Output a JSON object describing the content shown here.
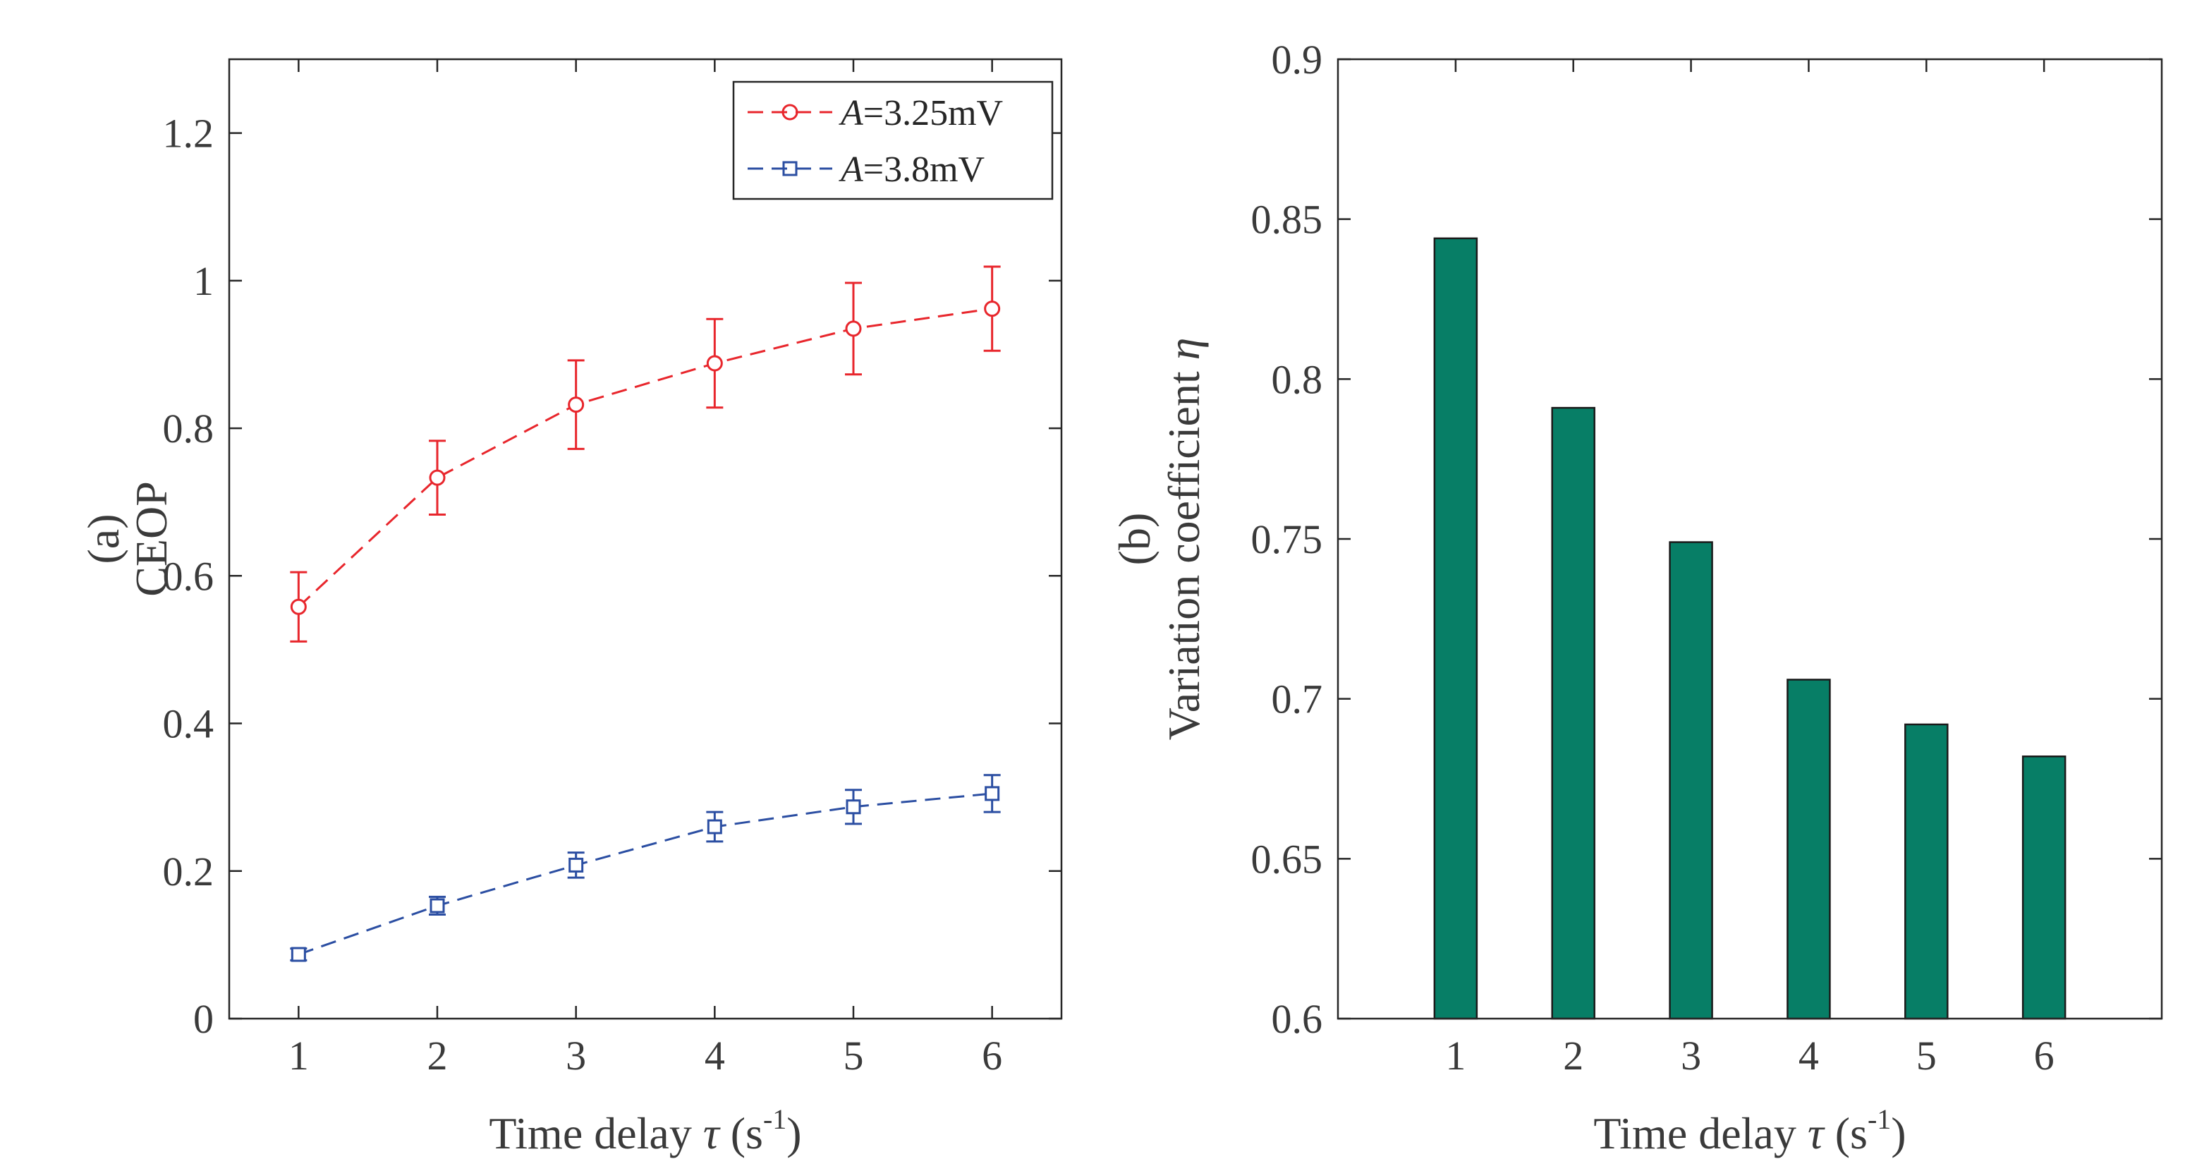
{
  "chart_data": [
    {
      "type": "line",
      "panel_label": "(a)",
      "ylabel": "CEOP",
      "xlabel_prefix": "Time delay ",
      "xlabel_symbol": "τ",
      "xlabel_unit": " (s",
      "xlabel_exp": "-1",
      "xlabel_close": ")",
      "x": [
        1,
        2,
        3,
        4,
        5,
        6
      ],
      "xlim": [
        0.5,
        6.5
      ],
      "ylim": [
        0,
        1.3
      ],
      "xticks": [
        "1",
        "2",
        "3",
        "4",
        "5",
        "6"
      ],
      "yticks": [
        "0",
        "0.2",
        "0.4",
        "0.6",
        "0.8",
        "1",
        "1.2"
      ],
      "ytick_values": [
        0,
        0.2,
        0.4,
        0.6,
        0.8,
        1.0,
        1.2
      ],
      "legend_position": "top-right",
      "series": [
        {
          "legend_var": "A",
          "legend_value": "=3.25mV",
          "color": "#e8262c",
          "marker": "circle",
          "values": [
            0.558,
            0.733,
            0.832,
            0.888,
            0.935,
            0.962
          ],
          "errors": [
            0.047,
            0.05,
            0.06,
            0.06,
            0.062,
            0.057
          ]
        },
        {
          "legend_var": "A",
          "legend_value": "=3.8mV",
          "color": "#2b4ea2",
          "marker": "square",
          "values": [
            0.087,
            0.153,
            0.208,
            0.26,
            0.287,
            0.305
          ],
          "errors": [
            0.008,
            0.012,
            0.017,
            0.02,
            0.023,
            0.025
          ]
        }
      ]
    },
    {
      "type": "bar",
      "panel_label": "(b)",
      "ylabel_text": "Variation coefficient ",
      "ylabel_symbol": "η",
      "xlabel_prefix": "Time delay ",
      "xlabel_symbol": "τ",
      "xlabel_unit": " (s",
      "xlabel_exp": "-1",
      "xlabel_close": ")",
      "categories": [
        "1",
        "2",
        "3",
        "4",
        "5",
        "6"
      ],
      "values": [
        0.844,
        0.791,
        0.749,
        0.706,
        0.692,
        0.682
      ],
      "ylim": [
        0.6,
        0.9
      ],
      "yticks": [
        "0.6",
        "0.65",
        "0.7",
        "0.75",
        "0.8",
        "0.85",
        "0.9"
      ],
      "ytick_values": [
        0.6,
        0.65,
        0.7,
        0.75,
        0.8,
        0.85,
        0.9
      ],
      "bar_color": "#077e66"
    }
  ]
}
